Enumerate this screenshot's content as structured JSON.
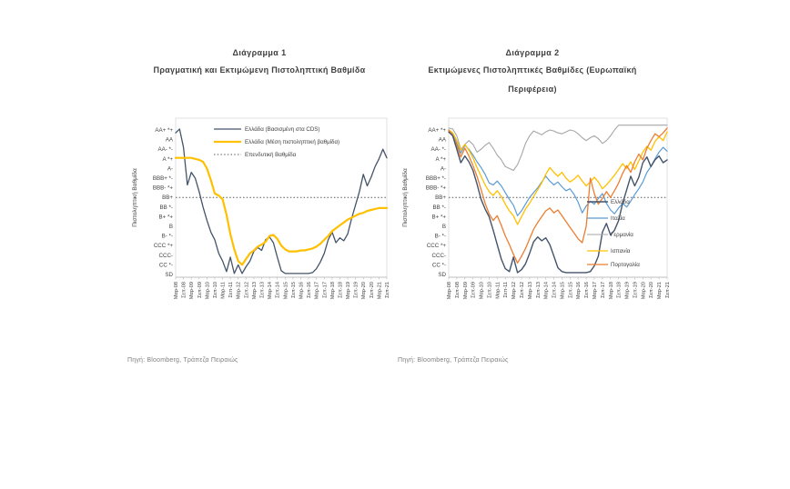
{
  "page": {
    "background": "#ffffff"
  },
  "chart_data": [
    {
      "type": "line",
      "title": "Διάγραμμα 1",
      "subtitle": "Πραγματική και Εκτιμώμενη Πιστοληπτική Βαθμίδα",
      "source": "Πηγή: Bloomberg, Τράπεζα Πειραιώς",
      "ylabel": "Πιστοληπτική Βαθμίδα",
      "y_axis": {
        "tick_labels_top_to_bottom": [
          "AA+ *+",
          "AA",
          "AA- *-",
          "A *+",
          "A-",
          "BBB+ *-",
          "BBB- *+",
          "BB+",
          "BB *-",
          "B+ *+",
          "B",
          "B- *-",
          "CCC *+",
          "CCC-",
          "CC *-",
          "SD"
        ],
        "top_value": 15,
        "bottom_value": 0
      },
      "x_tick_labels": [
        "Μαρ-08",
        "Σεπ-08",
        "Μαρ-09",
        "Σεπ-09",
        "Μαρ-10",
        "Σεπ-10",
        "Μαρ-11",
        "Σεπ-11",
        "Μαρ-12",
        "Σεπ-12",
        "Μαρ-13",
        "Σεπ-13",
        "Μαρ-14",
        "Σεπ-14",
        "Μαρ-15",
        "Σεπ-15",
        "Μαρ-16",
        "Σεπ-16",
        "Μαρ-17",
        "Σεπ-17",
        "Μαρ-18",
        "Σεπ-18",
        "Μαρ-19",
        "Σεπ-19",
        "Μαρ-20",
        "Σεπ-20",
        "Μαρ-21",
        "Σεπ-21"
      ],
      "reference_line": {
        "label": "Επενδυτική Βαθμίδα",
        "level": 8,
        "color": "#595959",
        "style": "dotted"
      },
      "series": [
        {
          "name": "Ελλάδα (Βασισμένη στα CDS)",
          "color": "#44546A",
          "values": [
            14.7,
            15.1,
            13.2,
            9.3,
            10.6,
            10.0,
            8.6,
            7.0,
            5.6,
            4.4,
            3.6,
            2.2,
            1.4,
            0.3,
            1.8,
            0.1,
            1.0,
            0.1,
            0.8,
            1.4,
            2.4,
            2.8,
            2.5,
            3.6,
            3.9,
            3.3,
            1.8,
            0.4,
            0.1,
            0.1,
            0.1,
            0.1,
            0.1,
            0.1,
            0.1,
            0.2,
            0.6,
            1.3,
            2.2,
            3.6,
            4.4,
            3.3,
            3.8,
            3.5,
            4.2,
            5.8,
            7.2,
            8.6,
            10.4,
            9.2,
            10.1,
            11.2,
            12.0,
            13.0,
            12.1
          ]
        },
        {
          "name": "Ελλάδα (Μέση πιστοληπτική βαθμίδα)",
          "color": "#FFC000",
          "values": [
            12.1,
            12.1,
            12.1,
            12.1,
            12.1,
            12.0,
            11.9,
            11.7,
            11.0,
            9.8,
            8.4,
            8.2,
            7.8,
            6.2,
            4.2,
            2.6,
            1.4,
            1.0,
            1.6,
            2.2,
            2.5,
            2.9,
            3.1,
            3.4,
            4.0,
            4.1,
            3.7,
            3.0,
            2.6,
            2.4,
            2.4,
            2.4,
            2.5,
            2.5,
            2.6,
            2.7,
            2.9,
            3.2,
            3.6,
            4.0,
            4.5,
            4.8,
            5.1,
            5.4,
            5.7,
            5.9,
            6.1,
            6.3,
            6.4,
            6.6,
            6.7,
            6.8,
            6.9,
            6.9,
            6.9
          ]
        }
      ]
    },
    {
      "type": "line",
      "title": "Διάγραμμα 2",
      "subtitle": "Εκτιμώμενες Πιστοληπτικές Βαθμίδες (Ευρωπαϊκή Περιφέρεια)",
      "source": "Πηγή: Bloomberg, Τράπεζα Πειραιώς",
      "ylabel": "Πιστοληπτική Βαθμίδα",
      "y_axis": {
        "tick_labels_top_to_bottom": [
          "AA+ *+",
          "AA",
          "AA- *-",
          "A *+",
          "A-",
          "BBB+ *-",
          "BBB- *+",
          "BB+",
          "BB *-",
          "B+ *+",
          "B",
          "B- *-",
          "CCC *+",
          "CCC-",
          "CC *-",
          "SD"
        ],
        "top_value": 15,
        "bottom_value": 0
      },
      "x_tick_labels": [
        "Μαρ-08",
        "Σεπ-08",
        "Μαρ-09",
        "Σεπ-09",
        "Μαρ-10",
        "Σεπ-10",
        "Μαρ-11",
        "Σεπ-11",
        "Μαρ-12",
        "Σεπ-12",
        "Μαρ-13",
        "Σεπ-13",
        "Μαρ-14",
        "Σεπ-14",
        "Μαρ-15",
        "Σεπ-15",
        "Μαρ-16",
        "Σεπ-16",
        "Μαρ-17",
        "Σεπ-17",
        "Μαρ-18",
        "Σεπ-18",
        "Μαρ-19",
        "Σεπ-19",
        "Μαρ-20",
        "Σεπ-20",
        "Μαρ-21",
        "Σεπ-21"
      ],
      "reference_line": {
        "level": 8,
        "color": "#595959",
        "style": "dotted"
      },
      "series": [
        {
          "name": "Ελλάδα",
          "color": "#44546A",
          "values": [
            14.8,
            14.4,
            13.0,
            11.6,
            12.3,
            11.7,
            10.8,
            9.4,
            7.8,
            6.8,
            6.0,
            4.6,
            3.1,
            1.6,
            0.6,
            0.3,
            1.8,
            0.2,
            0.5,
            1.1,
            2.2,
            3.4,
            3.9,
            3.5,
            3.8,
            3.1,
            1.9,
            0.7,
            0.3,
            0.2,
            0.2,
            0.2,
            0.2,
            0.2,
            0.2,
            0.3,
            0.9,
            1.9,
            4.4,
            5.3,
            4.1,
            4.6,
            5.6,
            7.4,
            8.8,
            10.2,
            9.2,
            10.1,
            11.6,
            12.2,
            11.2,
            11.9,
            12.3,
            11.6,
            11.9
          ]
        },
        {
          "name": "Ιταλία",
          "color": "#5B9BD5",
          "values": [
            15.0,
            14.6,
            13.6,
            12.6,
            13.4,
            13.0,
            12.4,
            11.7,
            11.1,
            10.4,
            9.5,
            9.3,
            9.7,
            9.2,
            8.5,
            7.8,
            7.2,
            6.1,
            6.6,
            7.3,
            8.0,
            8.5,
            9.0,
            9.6,
            10.2,
            9.7,
            9.3,
            9.6,
            9.1,
            8.7,
            8.9,
            8.3,
            7.5,
            6.4,
            7.1,
            7.6,
            7.3,
            7.9,
            8.4,
            7.4,
            6.7,
            6.3,
            6.9,
            7.4,
            7.0,
            7.6,
            8.3,
            8.9,
            9.6,
            10.6,
            11.2,
            12.0,
            12.7,
            13.2,
            12.8
          ]
        },
        {
          "name": "Γερμανία",
          "color": "#A6A6A6",
          "values": [
            15.2,
            15.1,
            14.4,
            13.0,
            13.5,
            13.9,
            13.5,
            12.7,
            13.0,
            13.4,
            13.7,
            13.1,
            12.4,
            11.9,
            11.2,
            11.0,
            10.8,
            11.4,
            12.4,
            13.6,
            14.4,
            14.9,
            14.7,
            14.5,
            14.8,
            15.0,
            14.9,
            14.7,
            14.6,
            14.8,
            15.0,
            14.9,
            14.6,
            14.2,
            13.9,
            14.2,
            14.4,
            14.1,
            13.6,
            13.9,
            14.4,
            15.0,
            15.5,
            15.5,
            15.5,
            15.5,
            15.5,
            15.5,
            15.5,
            15.5,
            15.5,
            15.5,
            15.5,
            15.5,
            15.5
          ]
        },
        {
          "name": "Ισπανία",
          "color": "#FFC000",
          "values": [
            15.0,
            14.7,
            13.9,
            12.9,
            13.5,
            12.9,
            12.1,
            11.1,
            10.2,
            9.3,
            8.6,
            8.2,
            8.7,
            8.1,
            7.3,
            6.6,
            6.1,
            5.2,
            6.0,
            6.8,
            7.4,
            8.1,
            8.8,
            9.5,
            10.4,
            11.1,
            10.6,
            10.2,
            10.6,
            10.0,
            9.6,
            9.9,
            10.3,
            9.7,
            9.2,
            9.6,
            10.1,
            9.6,
            8.9,
            9.3,
            9.8,
            10.3,
            10.9,
            11.5,
            11.0,
            11.7,
            10.9,
            11.8,
            12.7,
            13.3,
            12.9,
            13.8,
            14.3,
            13.9,
            14.8
          ]
        },
        {
          "name": "Πορτογαλία",
          "color": "#ED7D31",
          "values": [
            15.0,
            14.4,
            13.4,
            12.2,
            13.1,
            12.3,
            11.3,
            10.2,
            8.8,
            7.4,
            6.3,
            5.6,
            6.1,
            5.1,
            4.0,
            3.1,
            2.1,
            1.2,
            1.9,
            2.7,
            3.7,
            4.7,
            5.4,
            6.0,
            6.6,
            6.9,
            6.4,
            6.7,
            6.1,
            5.5,
            4.9,
            4.3,
            3.7,
            3.3,
            5.0,
            10.0,
            8.4,
            7.3,
            7.9,
            8.6,
            8.0,
            8.7,
            9.5,
            10.5,
            11.3,
            10.6,
            11.7,
            12.5,
            11.9,
            13.1,
            13.9,
            14.6,
            14.3,
            14.7,
            15.2
          ]
        }
      ]
    }
  ]
}
